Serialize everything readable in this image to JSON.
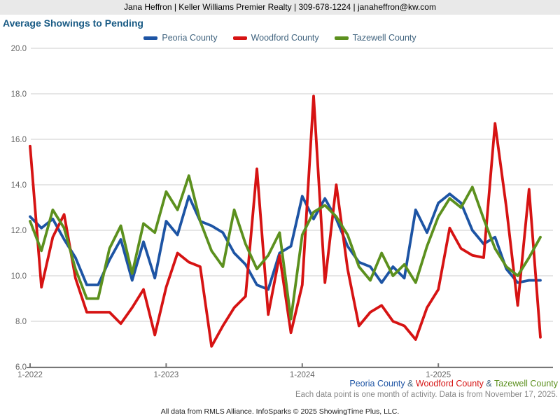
{
  "header": {
    "text": "Jana Heffron | Keller Williams Premier Realty | 309-678-1224 | janaheffron@kw.com"
  },
  "title": "Average Showings to Pending",
  "colors": {
    "peoria": "#1d54a4",
    "woodford": "#d61313",
    "tazewell": "#5c901e",
    "grid": "#cccccc",
    "axis": "#777777",
    "axis_text": "#666666",
    "title_text": "#185a84",
    "legend_text": "#41647f",
    "header_bg": "#e9e9e9"
  },
  "chart_data": {
    "type": "line",
    "title": "Average Showings to Pending",
    "xlabel": "",
    "ylabel": "",
    "ylim": [
      6.0,
      20.0
    ],
    "y_tick_labels": [
      "20.0",
      "18.0",
      "16.0",
      "14.0",
      "12.0",
      "10.0",
      "8.0",
      "6.0"
    ],
    "y_tick_values": [
      20,
      18,
      16,
      14,
      12,
      10,
      8,
      6
    ],
    "grid": "horizontal-only",
    "legend_position": "top-center",
    "x_start_month": "1-2022",
    "x_end_month": "10-2025",
    "months_per_point": 1,
    "x_ticks": [
      {
        "index": 0,
        "label": "1-2022"
      },
      {
        "index": 12,
        "label": "1-2023"
      },
      {
        "index": 24,
        "label": "1-2024"
      },
      {
        "index": 36,
        "label": "1-2025"
      }
    ],
    "series": [
      {
        "name": "Peoria County",
        "color": "#1d54a4",
        "values": [
          12.6,
          12.1,
          12.5,
          11.6,
          10.8,
          9.6,
          9.6,
          10.7,
          11.6,
          9.8,
          11.5,
          9.9,
          12.4,
          11.8,
          13.5,
          12.4,
          12.2,
          11.9,
          11.0,
          10.5,
          9.6,
          9.4,
          11.0,
          11.3,
          13.5,
          12.5,
          13.4,
          12.5,
          11.3,
          10.6,
          10.4,
          9.7,
          10.4,
          9.9,
          12.9,
          11.9,
          13.2,
          13.6,
          13.2,
          12.0,
          11.4,
          11.7,
          10.3,
          9.7,
          9.8,
          9.8
        ]
      },
      {
        "name": "Woodford County",
        "color": "#d61313",
        "values": [
          15.7,
          9.5,
          11.7,
          12.7,
          9.9,
          8.4,
          8.4,
          8.4,
          7.9,
          8.6,
          9.4,
          7.4,
          9.5,
          11.0,
          10.6,
          10.4,
          6.9,
          7.8,
          8.6,
          9.1,
          14.7,
          8.3,
          10.9,
          7.5,
          9.6,
          17.9,
          9.7,
          14.0,
          10.3,
          7.8,
          8.4,
          8.7,
          8.0,
          7.8,
          7.2,
          8.6,
          9.4,
          12.1,
          11.2,
          10.9,
          10.8,
          16.7,
          13.0,
          8.7,
          13.8,
          7.3
        ]
      },
      {
        "name": "Tazewell County",
        "color": "#5c901e",
        "values": [
          12.4,
          11.1,
          12.9,
          12.1,
          10.3,
          9.0,
          9.0,
          11.2,
          12.2,
          10.1,
          12.3,
          11.9,
          13.7,
          12.9,
          14.4,
          12.4,
          11.1,
          10.4,
          12.9,
          11.4,
          10.3,
          10.9,
          11.9,
          8.1,
          11.8,
          12.8,
          13.1,
          12.6,
          11.8,
          10.4,
          9.8,
          11.0,
          10.0,
          10.5,
          9.7,
          11.3,
          12.6,
          13.4,
          13.0,
          13.9,
          12.5,
          11.2,
          10.4,
          10.0,
          10.8,
          11.7
        ]
      }
    ]
  },
  "footer": {
    "series_separator": " & ",
    "note": "Each data point is one month of activity. Data is from November 17, 2025.",
    "credit": "All data from RMLS Alliance. InfoSparks © 2025 ShowingTime Plus, LLC."
  }
}
